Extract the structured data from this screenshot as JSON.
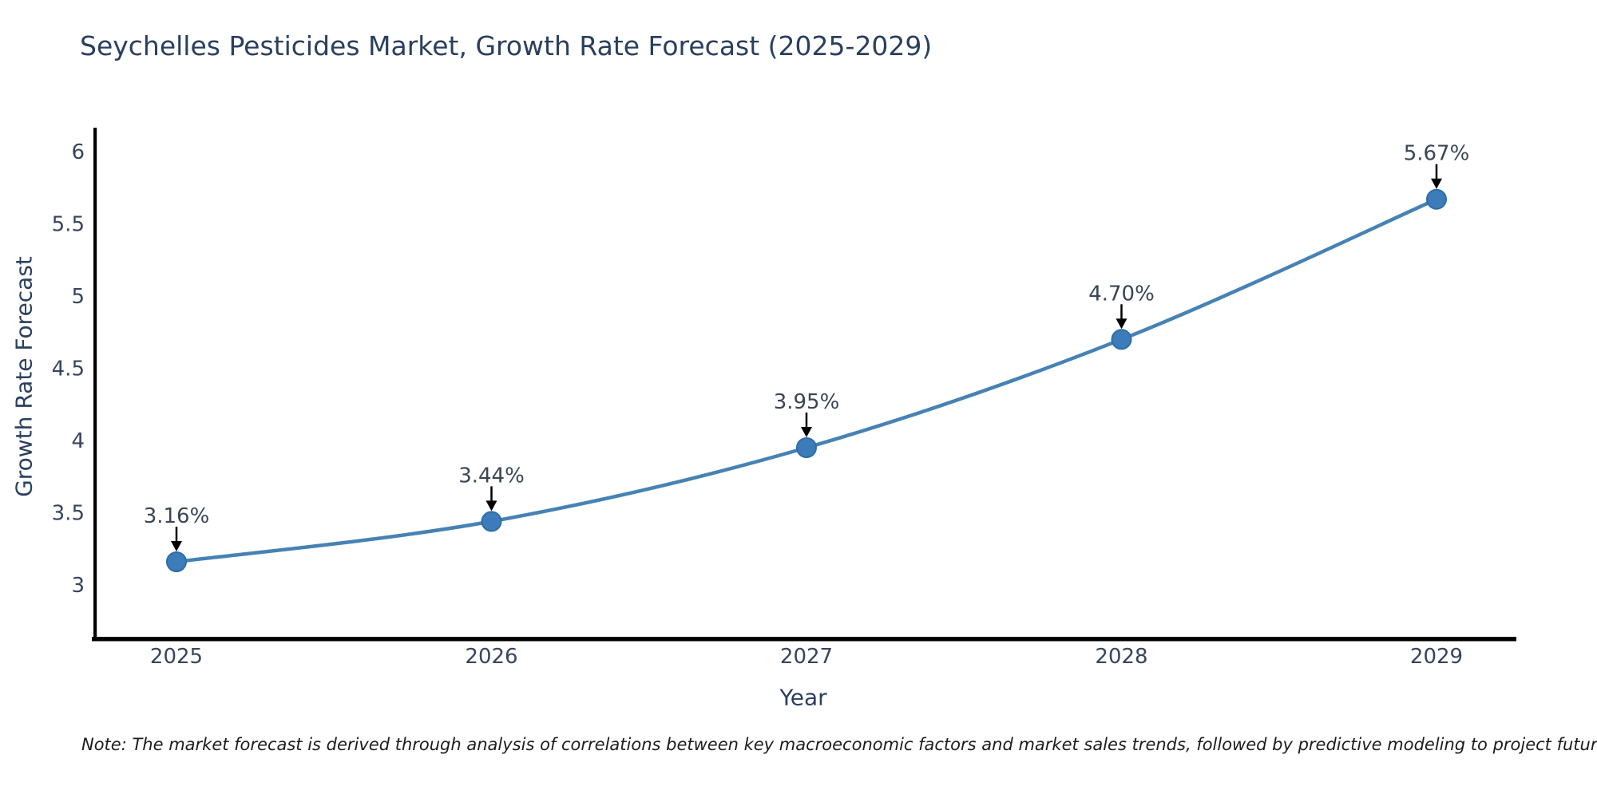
{
  "page": {
    "background": "#ffffff"
  },
  "chart_data": {
    "type": "line",
    "title": "Seychelles Pesticides Market, Growth Rate Forecast (2025-2029)",
    "xlabel": "Year",
    "ylabel": "Growth Rate Forecast",
    "categories": [
      "2025",
      "2026",
      "2027",
      "2028",
      "2029"
    ],
    "series": [
      {
        "name": "Growth Rate Forecast",
        "values": [
          3.16,
          3.44,
          3.95,
          4.7,
          5.67
        ]
      }
    ],
    "point_labels": [
      "3.16%",
      "3.44%",
      "3.95%",
      "4.70%",
      "5.67%"
    ],
    "yticks": [
      3,
      3.5,
      4,
      4.5,
      5,
      5.5,
      6
    ],
    "ytick_labels": [
      "3",
      "3.5",
      "4",
      "4.5",
      "5",
      "5.5",
      "6"
    ],
    "ylim": [
      2.63,
      6.17
    ],
    "grid": false,
    "legend": "none",
    "line_color": "#4682b4",
    "marker_color": "#3d7cba",
    "marker_edge_color": "#2e6da4",
    "annotation_arrow_color": "#000000",
    "axis_color": "#000000"
  },
  "note": {
    "text": "Note: The market forecast is derived through analysis of correlations between key macroeconomic factors and market sales trends, followed by predictive modeling to project future sales"
  }
}
